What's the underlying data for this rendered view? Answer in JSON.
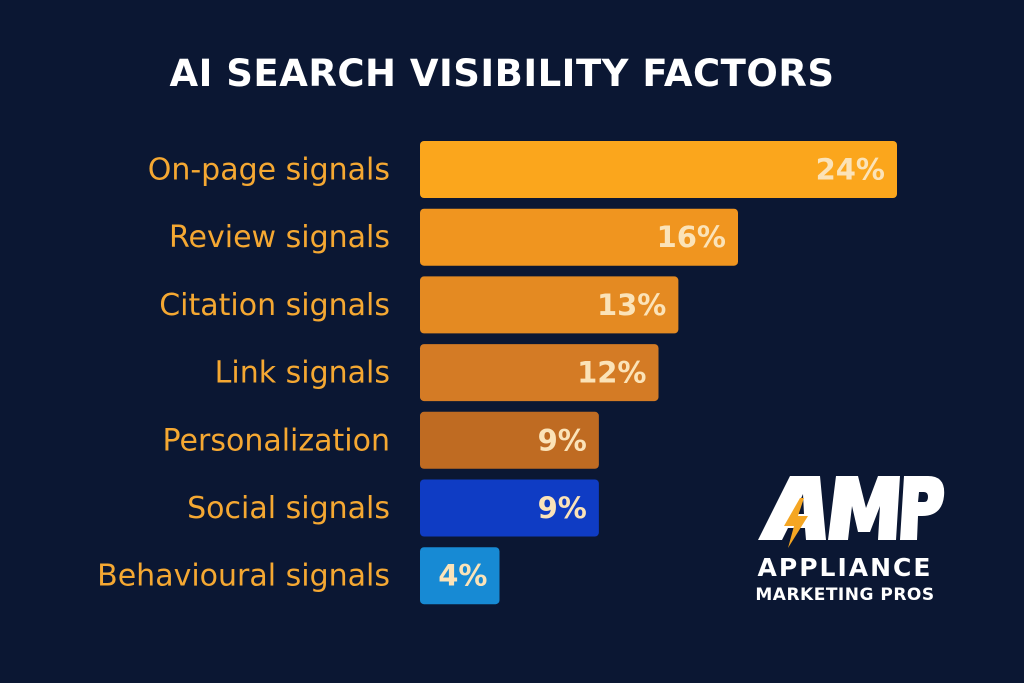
{
  "chart_data": {
    "type": "bar",
    "orientation": "horizontal",
    "title": "AI SEARCH VISIBILITY FACTORS",
    "categories": [
      "On-page signals",
      "Review signals",
      "Citation signals",
      "Link signals",
      "Personalization",
      "Social signals",
      "Behavioural signals"
    ],
    "values": [
      24,
      16,
      13,
      12,
      9,
      9,
      4
    ],
    "value_labels": [
      "24%",
      "16%",
      "13%",
      "12%",
      "9%",
      "9%",
      "4%"
    ],
    "colors": [
      "#fba61c",
      "#f0951f",
      "#e48a22",
      "#d47b25",
      "#bf6b22",
      "#0f3cc4",
      "#178ad4"
    ],
    "xlim": [
      0,
      24
    ],
    "grid": false,
    "legend": "none"
  },
  "logo": {
    "mark": "AMP",
    "line1": "APPLIANCE",
    "line2": "MARKETING PROS"
  }
}
